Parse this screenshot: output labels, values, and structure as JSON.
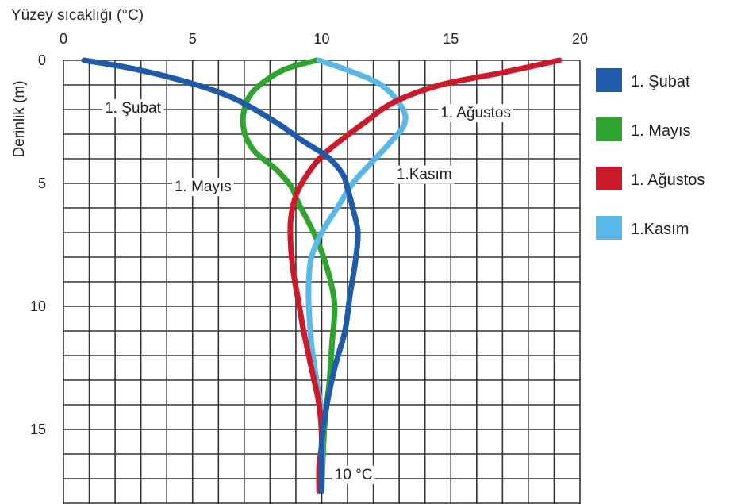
{
  "chart_data": {
    "type": "line",
    "orientation": "depth-profile",
    "xlabel": "Yüzey sıcaklığı (°C)",
    "ylabel": "Derinlik (m)",
    "xlim": [
      0,
      20
    ],
    "ylim": [
      0,
      17.5
    ],
    "x_ticks": [
      "0",
      "5",
      "10",
      "15",
      "20"
    ],
    "y_ticks": [
      "0",
      "5",
      "10",
      "15"
    ],
    "x_axis_position": "top",
    "y_inverted": true,
    "grid": true,
    "legend_position": "right",
    "series": [
      {
        "name": "1. Şubat",
        "color": "#1f5ba8",
        "points": [
          [
            0.8,
            0
          ],
          [
            2.5,
            0.3
          ],
          [
            4.5,
            0.8
          ],
          [
            6.5,
            1.5
          ],
          [
            8.2,
            2.5
          ],
          [
            9.3,
            3.3
          ],
          [
            10.2,
            3.9
          ],
          [
            10.8,
            4.6
          ],
          [
            11.0,
            5.2
          ],
          [
            11.2,
            6.0
          ],
          [
            11.4,
            7.0
          ],
          [
            11.3,
            8.2
          ],
          [
            11.1,
            9.5
          ],
          [
            10.9,
            11.0
          ],
          [
            10.5,
            12.5
          ],
          [
            10.2,
            14.0
          ],
          [
            10.0,
            15.5
          ],
          [
            10.0,
            17.5
          ]
        ]
      },
      {
        "name": "1. Mayıs",
        "color": "#2ea32e",
        "points": [
          [
            9.8,
            0
          ],
          [
            8.5,
            0.4
          ],
          [
            7.4,
            1.2
          ],
          [
            7.0,
            2.0
          ],
          [
            7.0,
            2.9
          ],
          [
            7.4,
            3.7
          ],
          [
            8.2,
            4.4
          ],
          [
            8.8,
            5.1
          ],
          [
            9.1,
            5.8
          ],
          [
            9.5,
            6.6
          ],
          [
            9.9,
            7.5
          ],
          [
            10.3,
            8.8
          ],
          [
            10.5,
            10.0
          ],
          [
            10.4,
            11.5
          ],
          [
            10.3,
            13.0
          ],
          [
            10.1,
            15.0
          ],
          [
            10.0,
            17.5
          ]
        ]
      },
      {
        "name": "1. Ağustos",
        "color": "#cc1a2a",
        "points": [
          [
            19.2,
            0
          ],
          [
            17.0,
            0.5
          ],
          [
            14.6,
            1.0
          ],
          [
            12.8,
            1.7
          ],
          [
            11.7,
            2.5
          ],
          [
            10.8,
            3.2
          ],
          [
            10.0,
            3.9
          ],
          [
            9.4,
            4.7
          ],
          [
            9.0,
            5.5
          ],
          [
            8.8,
            6.5
          ],
          [
            8.8,
            7.5
          ],
          [
            8.9,
            8.6
          ],
          [
            9.1,
            9.8
          ],
          [
            9.3,
            11.0
          ],
          [
            9.6,
            12.5
          ],
          [
            9.9,
            14.0
          ],
          [
            10.0,
            15.5
          ],
          [
            9.9,
            16.5
          ],
          [
            9.9,
            17.5
          ]
        ]
      },
      {
        "name": "1.Kasım",
        "color": "#5ab8e8",
        "points": [
          [
            9.9,
            0
          ],
          [
            11.0,
            0.4
          ],
          [
            12.3,
            1.0
          ],
          [
            13.1,
            1.9
          ],
          [
            13.2,
            2.6
          ],
          [
            12.6,
            3.4
          ],
          [
            11.8,
            4.3
          ],
          [
            11.2,
            5.0
          ],
          [
            10.6,
            6.0
          ],
          [
            10.0,
            7.0
          ],
          [
            9.6,
            8.0
          ],
          [
            9.5,
            9.0
          ],
          [
            9.5,
            10.0
          ],
          [
            9.6,
            11.5
          ],
          [
            9.8,
            13.0
          ],
          [
            10.0,
            14.5
          ],
          [
            10.0,
            17.5
          ]
        ]
      }
    ],
    "annotations": [
      {
        "text": "1. Şubat",
        "x": 1.6,
        "y": 1.9,
        "anchor": "start"
      },
      {
        "text": "1. Ağustos",
        "x": 14.6,
        "y": 2.1,
        "anchor": "start"
      },
      {
        "text": "1.Kasım",
        "x": 12.9,
        "y": 4.6,
        "anchor": "start"
      },
      {
        "text": "1. Mayıs",
        "x": 4.3,
        "y": 5.1,
        "anchor": "start"
      },
      {
        "text": "10 °C",
        "x": 10.5,
        "y": 16.8,
        "anchor": "start"
      }
    ]
  }
}
